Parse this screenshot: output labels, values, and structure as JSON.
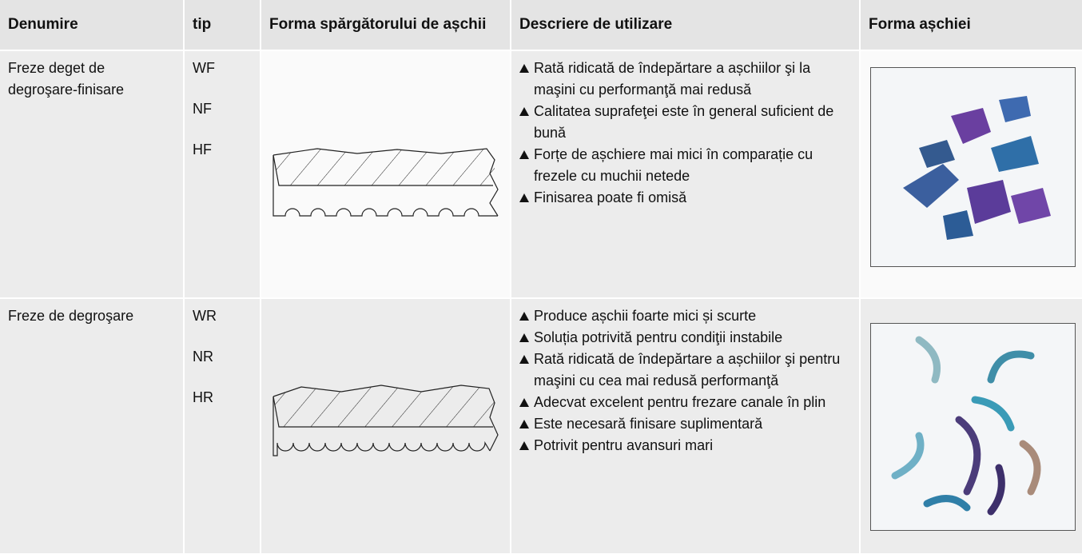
{
  "header": [
    "Denumire",
    "tip",
    "Forma spărgătorului de așchii",
    "Descriere de utilizare",
    "Forma așchiei"
  ],
  "rows": [
    {
      "name": "Freze deget de degroşare-finisare",
      "types": [
        "WF",
        "NF",
        "HF"
      ],
      "bullets": [
        "Rată ridicată de îndepărtare a așchiilor şi la maşini cu performanţă mai redusă",
        "Calitatea suprafeţei este în general suficient de bună",
        "Forțe de așchiere mai mici în comparație cu frezele cu muchii netede",
        "Finisarea poate fi omisă"
      ]
    },
    {
      "name": "Freze de degroşare",
      "types": [
        "WR",
        "NR",
        "HR"
      ],
      "bullets": [
        "Produce așchii foarte mici și scurte",
        "Soluția potrivită pentru condiţii instabile",
        "Rată ridicată de îndepărtare a așchiilor şi pentru maşini cu cea mai redusă performanţă",
        "Adecvat excelent pentru frezare canale în plin",
        "Este necesară finisare suplimentară",
        "Potrivit pentru avansuri mari"
      ]
    }
  ]
}
